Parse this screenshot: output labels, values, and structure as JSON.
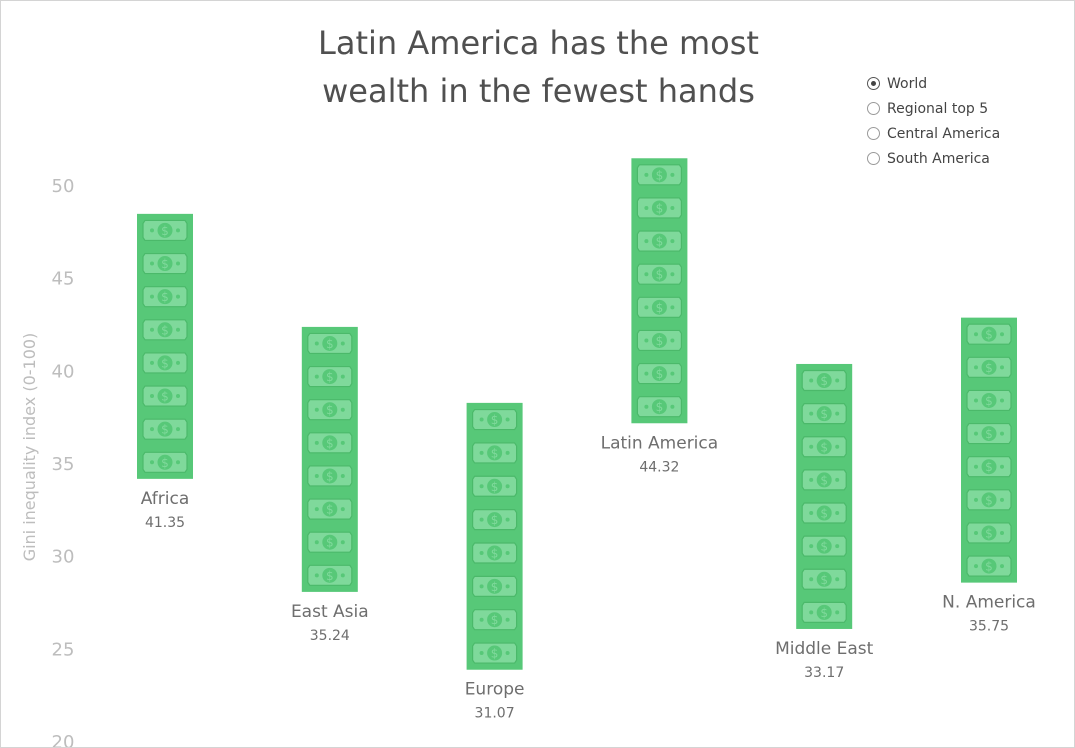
{
  "title": {
    "line1": "Latin America has the most",
    "line2": "wealth in the fewest hands"
  },
  "legend": {
    "options": [
      {
        "label": "World",
        "checked": true
      },
      {
        "label": "Regional top 5",
        "checked": false
      },
      {
        "label": "Central America",
        "checked": false
      },
      {
        "label": "South America",
        "checked": false
      }
    ]
  },
  "colors": {
    "bill_fill": "#57c878",
    "bill_inner": "#7fd99b",
    "bill_border": "#4bb96a",
    "axis_text": "#bdbdbd",
    "label_text": "#6e6e6e"
  },
  "icons": [
    "dollar-bill-icon"
  ],
  "chart_data": {
    "type": "bar",
    "ylabel": "Gini inequality index (0-100)",
    "ylim": [
      20,
      52
    ],
    "yticks": [
      "20",
      "25",
      "30",
      "35",
      "40",
      "45",
      "50"
    ],
    "grid": false,
    "categories": [
      "Africa",
      "East Asia",
      "Europe",
      "Latin America",
      "Middle East",
      "N. America"
    ],
    "values": [
      41.35,
      35.24,
      31.07,
      44.32,
      33.17,
      35.75
    ],
    "value_labels": [
      "41.35",
      "35.24",
      "31.07",
      "44.32",
      "33.17",
      "35.75"
    ],
    "ranges": [
      [
        34.2,
        48.5
      ],
      [
        28.1,
        42.4
      ],
      [
        23.9,
        38.3
      ],
      [
        37.2,
        51.5
      ],
      [
        26.1,
        40.4
      ],
      [
        28.6,
        42.9
      ]
    ]
  }
}
